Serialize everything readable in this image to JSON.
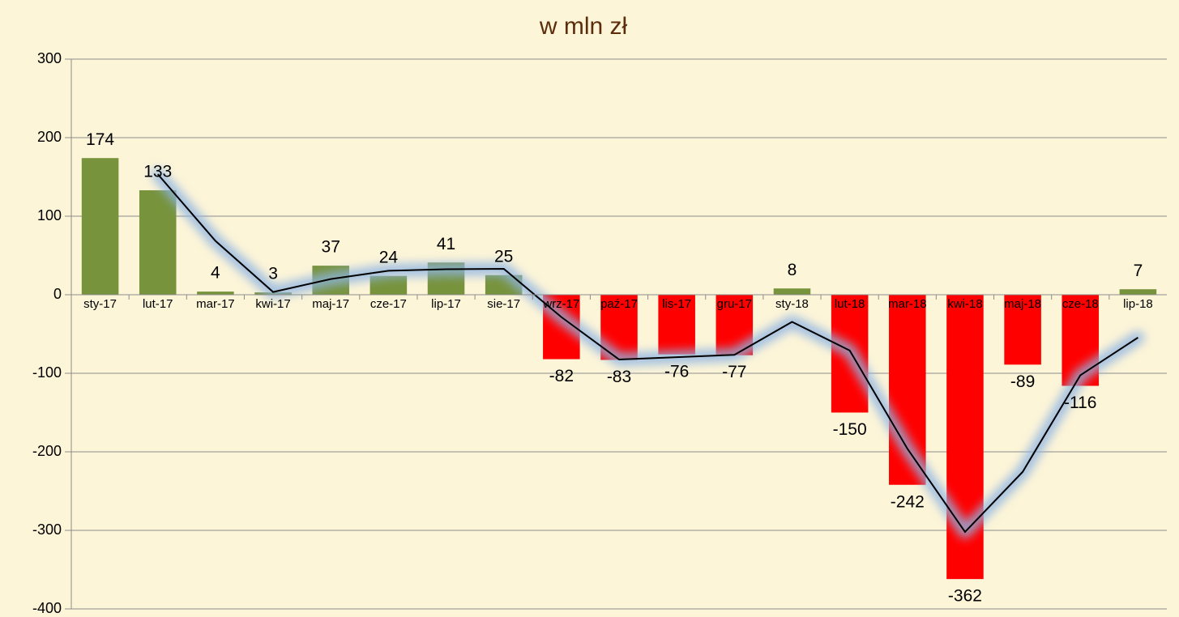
{
  "chart_data": {
    "type": "bar",
    "title": "w mln zł",
    "categories": [
      "sty-17",
      "lut-17",
      "mar-17",
      "kwi-17",
      "maj-17",
      "cze-17",
      "lip-17",
      "sie-17",
      "wrz-17",
      "paź-17",
      "lis-17",
      "gru-17",
      "sty-18",
      "lut-18",
      "mar-18",
      "kwi-18",
      "maj-18",
      "cze-18",
      "lip-18"
    ],
    "values": [
      174,
      133,
      4,
      3,
      37,
      24,
      41,
      25,
      -82,
      -83,
      -76,
      -77,
      8,
      -150,
      -242,
      -362,
      -89,
      -116,
      7
    ],
    "positive_color": "#77933c",
    "negative_color": "#ff0000",
    "trend": {
      "type": "line",
      "color": "#000000",
      "glow": "#8eb4e3",
      "values": [
        null,
        153.5,
        68.5,
        3.5,
        20,
        30.5,
        32.5,
        33,
        -28.5,
        -82.5,
        -79.5,
        -76.5,
        -34.5,
        -71,
        -196,
        -302,
        -225.5,
        -102.5,
        -54.5
      ]
    },
    "ylim": [
      -400,
      300
    ],
    "yticks": [
      -400,
      -300,
      -200,
      -100,
      0,
      100,
      200,
      300
    ],
    "grid": true
  }
}
